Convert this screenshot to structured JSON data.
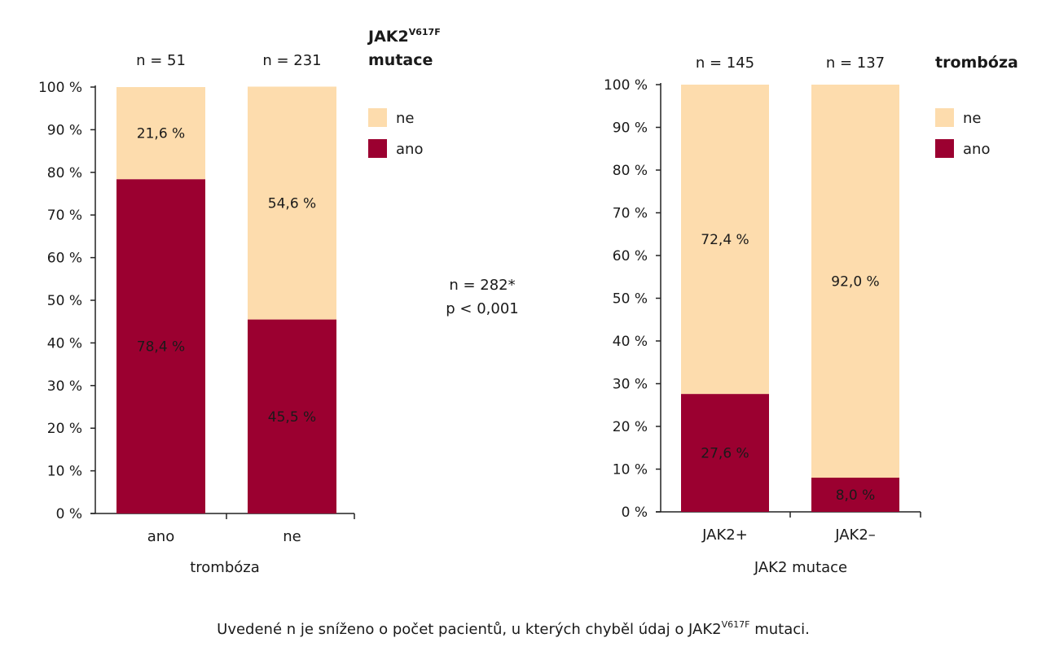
{
  "colors": {
    "ano": "#9b0030",
    "ne": "#fddcad"
  },
  "stats": {
    "line1": "n = 282*",
    "line2": "p < 0,001"
  },
  "caption": {
    "before": "Uvedené n je sníženo o počet pacientů, u kterých chyběl údaj o JAK2",
    "sup": "V617F",
    "after": " mutaci."
  },
  "chart_data": [
    {
      "type": "bar",
      "stacked": true,
      "xlabel": "trombóza",
      "ylabel": "",
      "ylim": [
        0,
        100
      ],
      "yticks": [
        "0 %",
        "10 %",
        "20 %",
        "30 %",
        "40 %",
        "50 %",
        "60 %",
        "70 %",
        "80 %",
        "90 %",
        "100 %"
      ],
      "categories": [
        "ano",
        "ne"
      ],
      "n_labels": [
        "n = 51",
        "n = 231"
      ],
      "legend": {
        "title": "JAK2",
        "title_sup": "V617F",
        "title_line2": "mutace",
        "position": "right"
      },
      "series": [
        {
          "name": "ano",
          "key": "ano",
          "values": [
            78.4,
            45.5
          ],
          "labels": [
            "78,4 %",
            "45,5 %"
          ]
        },
        {
          "name": "ne",
          "key": "ne",
          "values": [
            21.6,
            54.6
          ],
          "labels": [
            "21,6 %",
            "54,6 %"
          ]
        }
      ]
    },
    {
      "type": "bar",
      "stacked": true,
      "xlabel": "JAK2 mutace",
      "ylabel": "",
      "ylim": [
        0,
        100
      ],
      "yticks": [
        "0 %",
        "10 %",
        "20 %",
        "30 %",
        "40 %",
        "50 %",
        "60 %",
        "70 %",
        "80 %",
        "90 %",
        "100 %"
      ],
      "categories": [
        "JAK2+",
        "JAK2–"
      ],
      "n_labels": [
        "n = 145",
        "n = 137"
      ],
      "legend": {
        "title": "trombóza",
        "title_sup": "",
        "title_line2": "",
        "position": "right"
      },
      "series": [
        {
          "name": "ano",
          "key": "ano",
          "values": [
            27.6,
            8.0
          ],
          "labels": [
            "27,6 %",
            "8,0 %"
          ]
        },
        {
          "name": "ne",
          "key": "ne",
          "values": [
            72.4,
            92.0
          ],
          "labels": [
            "72,4 %",
            "92,0 %"
          ]
        }
      ]
    }
  ]
}
